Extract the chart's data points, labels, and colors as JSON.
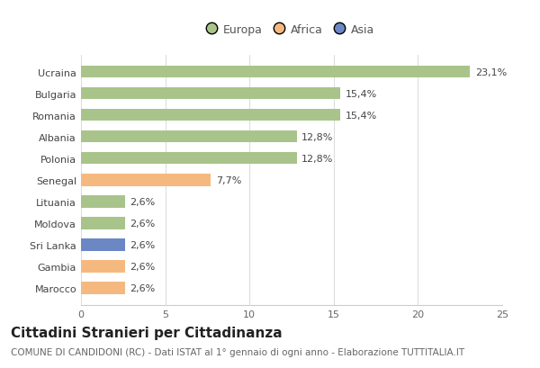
{
  "categories": [
    "Marocco",
    "Gambia",
    "Sri Lanka",
    "Moldova",
    "Lituania",
    "Senegal",
    "Polonia",
    "Albania",
    "Romania",
    "Bulgaria",
    "Ucraina"
  ],
  "values": [
    2.6,
    2.6,
    2.6,
    2.6,
    2.6,
    7.7,
    12.8,
    12.8,
    15.4,
    15.4,
    23.1
  ],
  "labels": [
    "2,6%",
    "2,6%",
    "2,6%",
    "2,6%",
    "2,6%",
    "7,7%",
    "12,8%",
    "12,8%",
    "15,4%",
    "15,4%",
    "23,1%"
  ],
  "colors": [
    "#f5b97f",
    "#f5b97f",
    "#6b87c4",
    "#a8c48a",
    "#a8c48a",
    "#f5b97f",
    "#a8c48a",
    "#a8c48a",
    "#a8c48a",
    "#a8c48a",
    "#a8c48a"
  ],
  "legend_labels": [
    "Europa",
    "Africa",
    "Asia"
  ],
  "legend_colors": [
    "#a8c48a",
    "#f5b97f",
    "#6b87c4"
  ],
  "title": "Cittadini Stranieri per Cittadinanza",
  "subtitle": "COMUNE DI CANDIDONI (RC) - Dati ISTAT al 1° gennaio di ogni anno - Elaborazione TUTTITALIA.IT",
  "xlim": [
    0,
    25
  ],
  "xticks": [
    0,
    5,
    10,
    15,
    20,
    25
  ],
  "background_color": "#ffffff",
  "bar_height": 0.55,
  "title_fontsize": 11,
  "subtitle_fontsize": 7.5,
  "label_fontsize": 8,
  "tick_fontsize": 8,
  "legend_fontsize": 9
}
